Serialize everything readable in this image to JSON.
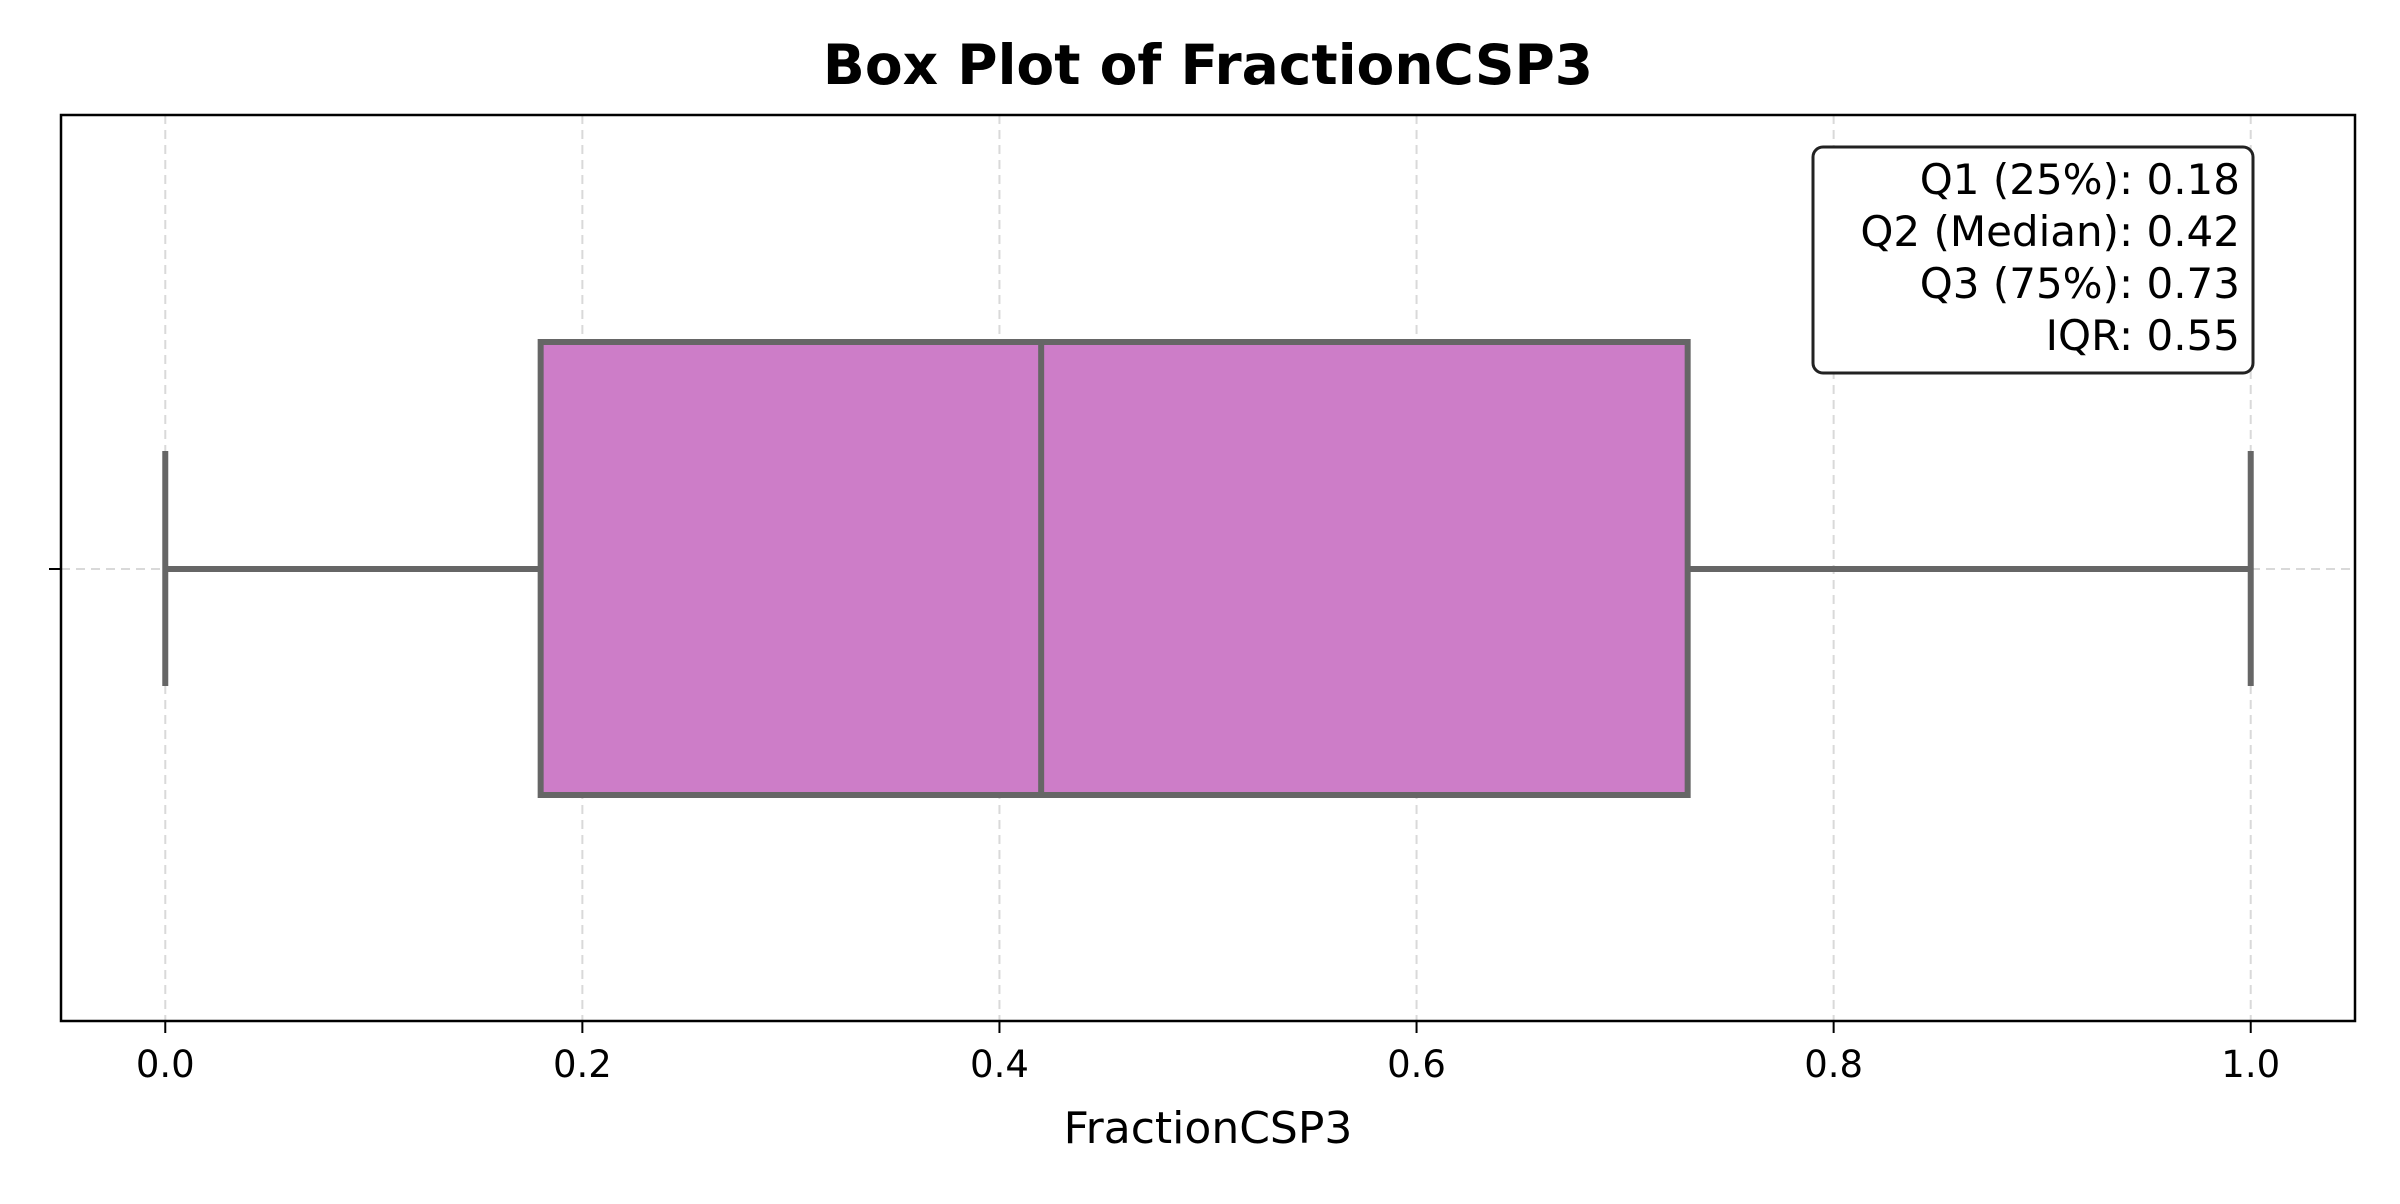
{
  "chart_data": {
    "type": "box",
    "title": "Box Plot of FractionCSP3",
    "xlabel": "FractionCSP3",
    "ylabel": "",
    "xlim": [
      -0.05,
      1.05
    ],
    "xticks": [
      0.0,
      0.2,
      0.4,
      0.6,
      0.8,
      1.0
    ],
    "xtick_labels": [
      "0.0",
      "0.2",
      "0.4",
      "0.6",
      "0.8",
      "1.0"
    ],
    "grid": true,
    "box": {
      "whisker_low": 0.0,
      "q1": 0.18,
      "median": 0.42,
      "q3": 0.73,
      "whisker_high": 1.0
    },
    "annotation": {
      "placement": "top-right",
      "lines": [
        "Q1 (25%): 0.18",
        "Q2 (Median): 0.42",
        "Q3 (75%): 0.73",
        "IQR: 0.55"
      ]
    }
  },
  "colors": {
    "box_fill": "#cd7dc8",
    "box_edge": "#666666",
    "grid": "#d9d9d9",
    "axes": "#000000"
  }
}
